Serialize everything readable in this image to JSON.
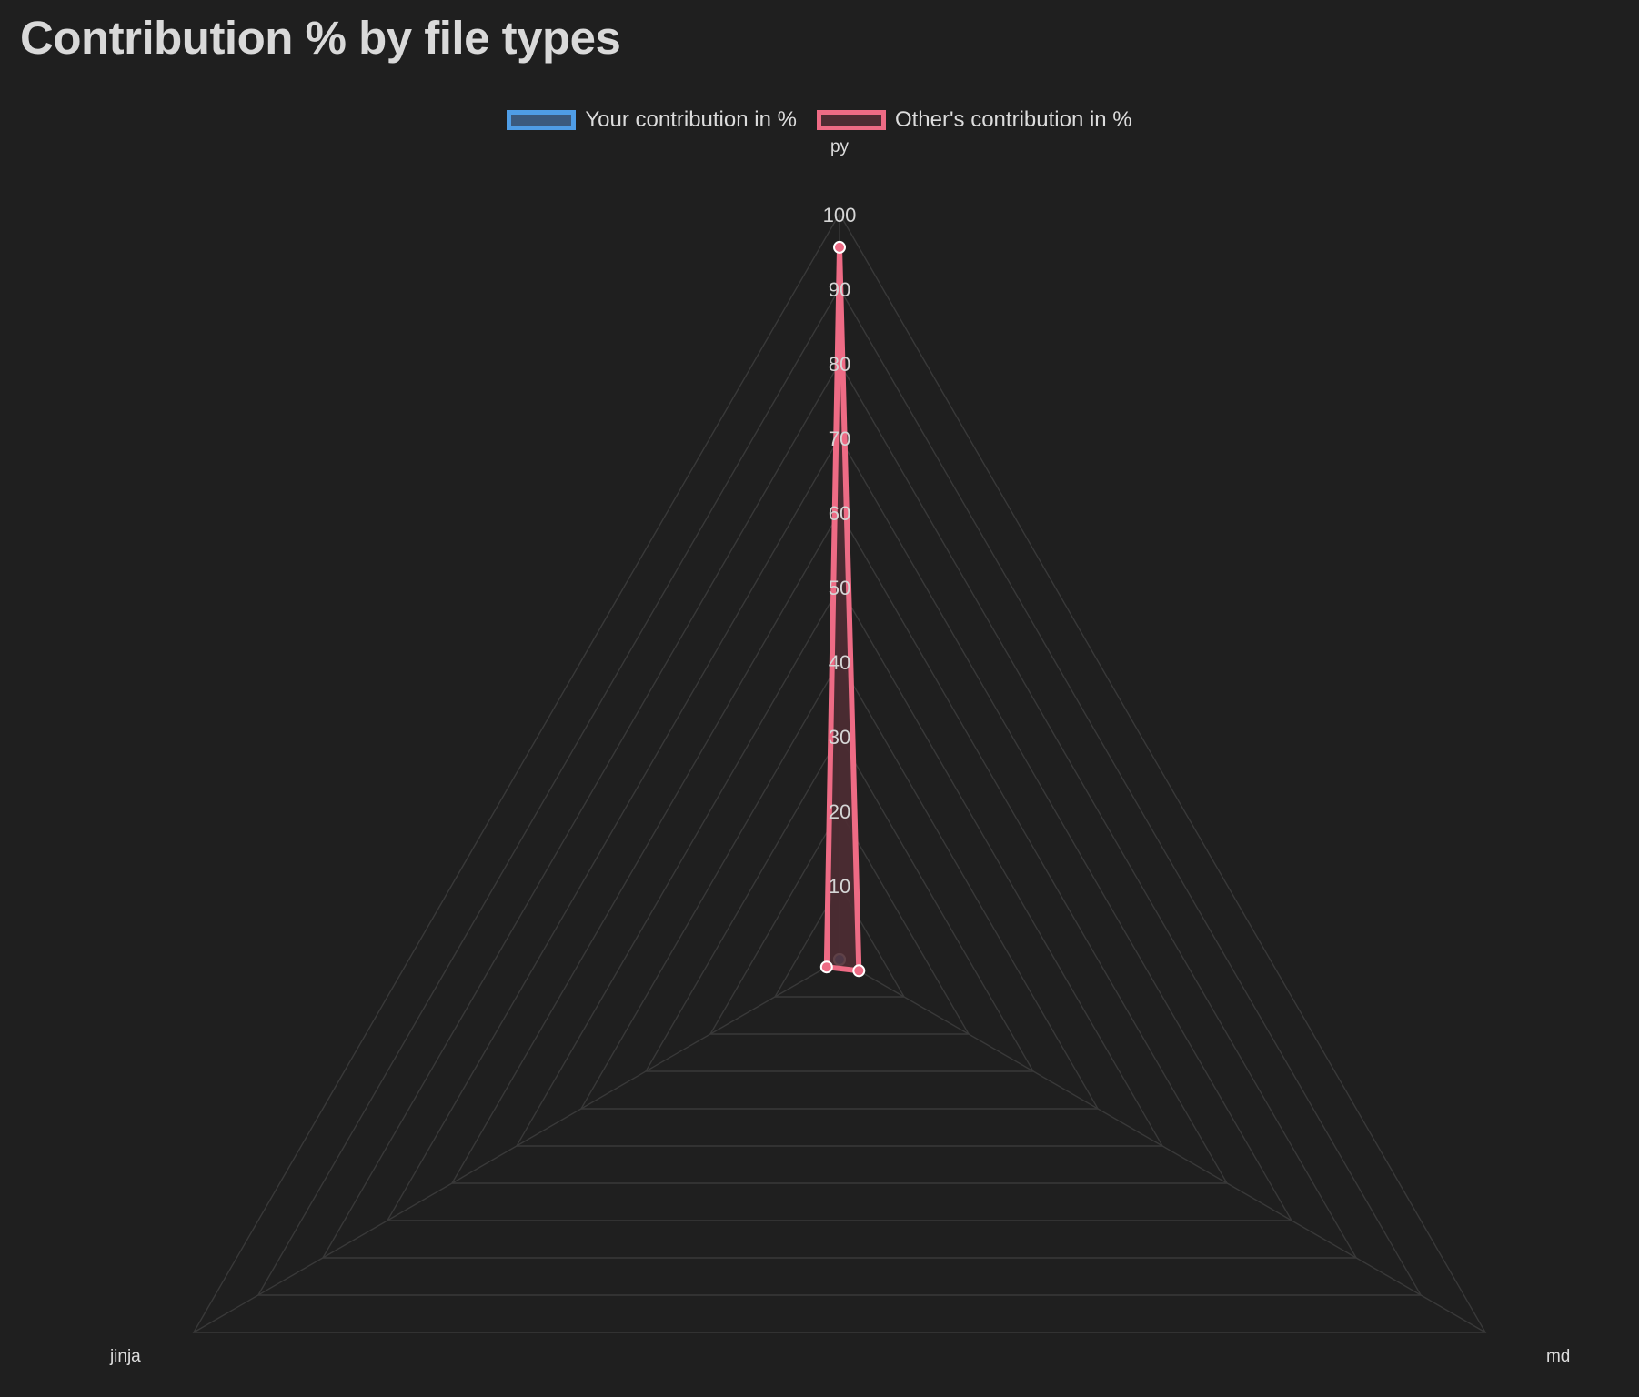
{
  "title": "Contribution % by file types",
  "legend": {
    "items": [
      {
        "label": "Your contribution in %",
        "stroke": "#4f9de6",
        "fill": "#3b5a7e"
      },
      {
        "label": "Other's contribution in %",
        "stroke": "#ee6b85",
        "fill": "#4e2c33"
      }
    ]
  },
  "colors": {
    "background": "#1f1f1f",
    "grid": "#393939",
    "tick_text": "#d5d5d5",
    "label_text": "#dcdcdc"
  },
  "chart_data": {
    "type": "radar",
    "title": "Contribution % by file types",
    "categories": [
      "py",
      "md",
      "jinja"
    ],
    "rlim": [
      0,
      100
    ],
    "ticks": [
      0,
      10,
      20,
      30,
      40,
      50,
      60,
      70,
      80,
      90,
      100
    ],
    "tick_labels": [
      "10",
      "20",
      "30",
      "40",
      "50",
      "60",
      "70",
      "80",
      "90",
      "100"
    ],
    "grid": true,
    "legend_position": "top",
    "series": [
      {
        "name": "Your contribution in %",
        "values": [
          0,
          0,
          0
        ],
        "color": "#4f9de6"
      },
      {
        "name": "Other's contribution in %",
        "values": [
          95.5,
          3,
          2
        ],
        "color": "#ee6b85"
      }
    ]
  }
}
